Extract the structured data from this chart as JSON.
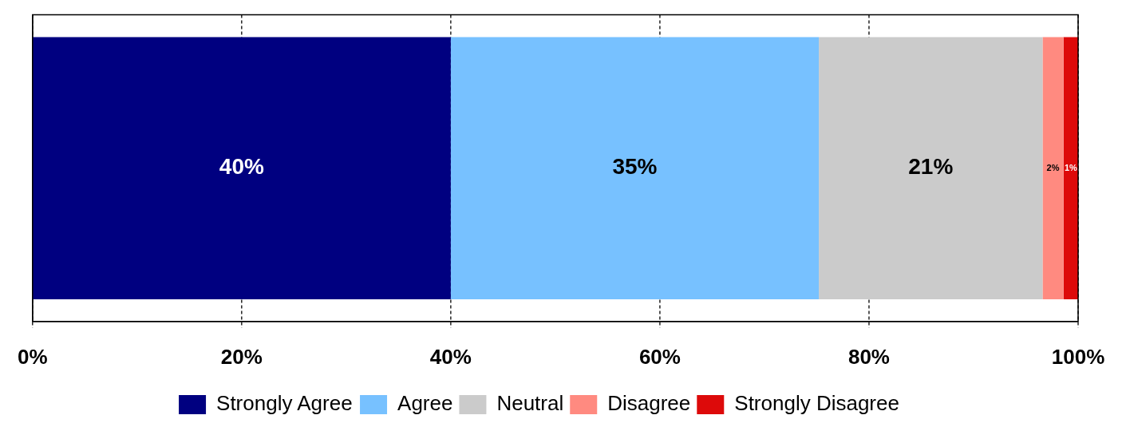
{
  "chart_data": {
    "type": "bar",
    "orientation": "horizontal",
    "stacked": true,
    "categories": [
      null
    ],
    "series": [
      {
        "name": "Strongly Agree",
        "color": "#000080",
        "values": [
          40
        ],
        "value_labels": [
          "40%"
        ]
      },
      {
        "name": "Agree",
        "color": "#77c1ff",
        "values": [
          35.2
        ],
        "value_labels": [
          "35%"
        ]
      },
      {
        "name": "Neutral",
        "color": "#cbcbcb",
        "values": [
          21.4
        ],
        "value_labels": [
          "21%"
        ]
      },
      {
        "name": "Disagree",
        "color": "#ff8a80",
        "values": [
          2
        ],
        "value_labels": [
          "2%"
        ]
      },
      {
        "name": "Strongly Disagree",
        "color": "#dd0a0a",
        "values": [
          1.4
        ],
        "value_labels": [
          "1%"
        ]
      }
    ],
    "xlim": [
      0,
      100
    ],
    "xticks": [
      {
        "value": 0,
        "label": "0%"
      },
      {
        "value": 20,
        "label": "20%"
      },
      {
        "value": 40,
        "label": "40%"
      },
      {
        "value": 60,
        "label": "60%"
      },
      {
        "value": 80,
        "label": "80%"
      },
      {
        "value": 100,
        "label": "100%"
      }
    ],
    "grid": "x",
    "legend": "bottom"
  }
}
